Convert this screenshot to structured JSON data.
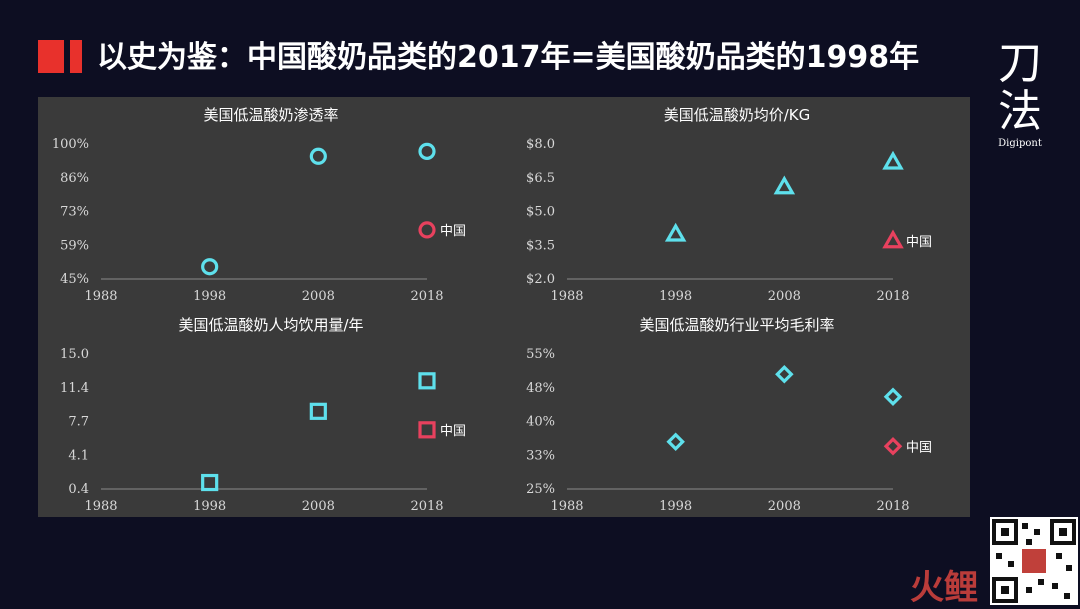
{
  "title": "以史为鉴：中国酸奶品类的2017年=美国酸奶品类的1998年",
  "logo": {
    "main_top": "刀",
    "main_bottom": "法",
    "sub": "Digipont"
  },
  "watermark": "火鲤",
  "colors": {
    "us": "#5ee0ec",
    "china": "#e8415e",
    "accent": "#e8312c",
    "panel": "#3a3a3a"
  },
  "chart_data": [
    {
      "type": "scatter",
      "title": "美国低温酸奶渗透率",
      "marker": "circle",
      "x_ticks": [
        "1988",
        "1998",
        "2008",
        "2018"
      ],
      "y_ticks": [
        "100%",
        "86%",
        "73%",
        "59%",
        "45%"
      ],
      "xlim": [
        1988,
        2018
      ],
      "ylim": [
        45,
        100
      ],
      "series": [
        {
          "points": [
            [
              1998,
              50
            ],
            [
              2008,
              95
            ],
            [
              2018,
              97
            ]
          ]
        }
      ],
      "china": {
        "label": "中国",
        "x": 2018,
        "y": 65
      }
    },
    {
      "type": "scatter",
      "title": "美国低温酸奶均价/KG",
      "marker": "triangle",
      "x_ticks": [
        "1988",
        "1998",
        "2008",
        "2018"
      ],
      "y_ticks": [
        "$8.0",
        "$6.5",
        "$5.0",
        "$3.5",
        "$2.0"
      ],
      "xlim": [
        1988,
        2018
      ],
      "ylim": [
        2.0,
        8.0
      ],
      "series": [
        {
          "points": [
            [
              1998,
              4.0
            ],
            [
              2008,
              6.1
            ],
            [
              2018,
              7.2
            ]
          ]
        }
      ],
      "china": {
        "label": "中国",
        "x": 2018,
        "y": 3.7
      }
    },
    {
      "type": "scatter",
      "title": "美国低温酸奶人均饮用量/年",
      "marker": "square",
      "x_ticks": [
        "1988",
        "1998",
        "2008",
        "2018"
      ],
      "y_ticks": [
        "15.0",
        "11.4",
        "7.7",
        "4.1",
        "0.4"
      ],
      "xlim": [
        1988,
        2018
      ],
      "ylim": [
        0.4,
        15.0
      ],
      "series": [
        {
          "points": [
            [
              1998,
              1.1
            ],
            [
              2008,
              8.8
            ],
            [
              2018,
              12.1
            ]
          ]
        }
      ],
      "china": {
        "label": "中国",
        "x": 2018,
        "y": 6.8
      }
    },
    {
      "type": "scatter",
      "title": "美国低温酸奶行业平均毛利率",
      "marker": "diamond",
      "x_ticks": [
        "1988",
        "1998",
        "2008",
        "2018"
      ],
      "y_ticks": [
        "55%",
        "48%",
        "40%",
        "33%",
        "25%"
      ],
      "xlim": [
        1988,
        2018
      ],
      "ylim": [
        25,
        55
      ],
      "series": [
        {
          "points": [
            [
              1998,
              35.5
            ],
            [
              2008,
              50.5
            ],
            [
              2018,
              45.5
            ]
          ]
        }
      ],
      "china": {
        "label": "中国",
        "x": 2018,
        "y": 34.5
      }
    }
  ]
}
